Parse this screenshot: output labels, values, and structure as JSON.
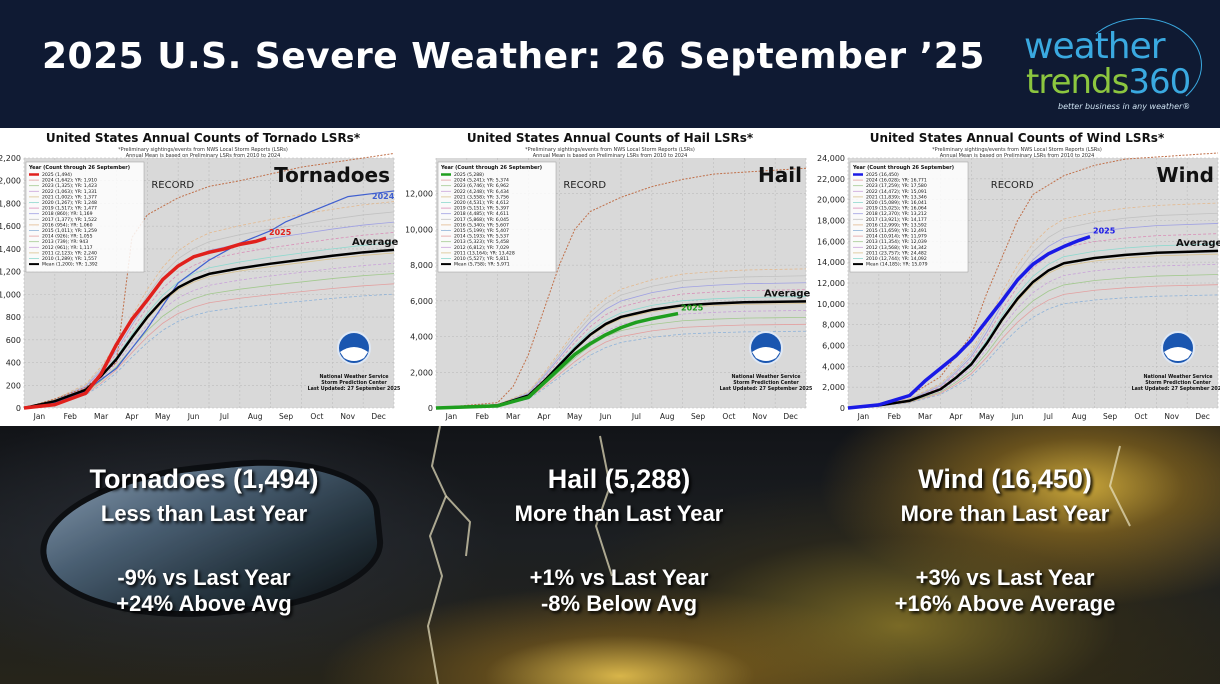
{
  "header": {
    "title": "2025 U.S. Severe Weather: 26 September ’25",
    "logo_line1": "weather",
    "logo_line2a": "trends",
    "logo_line2b": "360",
    "logo_tagline": "better business in any weather®"
  },
  "months": [
    "Jan",
    "Feb",
    "Mar",
    "Apr",
    "May",
    "Jun",
    "Jul",
    "Aug",
    "Sep",
    "Oct",
    "Nov",
    "Dec"
  ],
  "chart_data": [
    {
      "type": "line",
      "title": "United States Annual Counts of Tornado LSRs*",
      "subtitle1": "*Preliminary sightings/events from NWS Local Storm Reports (LSRs)",
      "subtitle2": "Annual Mean is based on Preliminary LSRs from 2010 to 2024",
      "overlay": "Tornadoes",
      "record_label": "RECORD",
      "average_label": "Average",
      "label_2025": "2025",
      "label_2024": "2024",
      "ylim": [
        0,
        2200
      ],
      "yticks": [
        "0",
        "200",
        "400",
        "600",
        "800",
        "1,000",
        "1,200",
        "1,400",
        "1,600",
        "1,800",
        "2,000",
        "2,200"
      ],
      "legend_title": "Year (Count through 26 September)",
      "legend": [
        "2025 (1,494)",
        "2024 (1,642); YR: 1,910",
        "2023 (1,325); YR: 1,423",
        "2022 (1,063); YR: 1,331",
        "2021 (1,002); YR: 1,377",
        "2020 (1,267); YR: 1,248",
        "2019 (1,517); YR: 1,477",
        "2018 (860); YR: 1,169",
        "2017 (1,377); YR: 1,522",
        "2016 (954); YR: 1,060",
        "2015 (1,011); YR: 1,259",
        "2014 (926); YR: 1,055",
        "2013 (739); YR: 943",
        "2012 (961); YR: 1,117",
        "2011 (2,123); YR: 2,240",
        "2010 (1,289); YR: 1,557",
        "Mean (1,200); YR: 1,392"
      ],
      "footer": [
        "National Weather Service",
        "Storm Prediction Center",
        "Last Updated: 27 September 2025"
      ],
      "series_2025": [
        [
          0,
          0
        ],
        [
          1,
          30
        ],
        [
          2,
          130
        ],
        [
          2.5,
          300
        ],
        [
          3,
          560
        ],
        [
          3.5,
          780
        ],
        [
          4,
          950
        ],
        [
          4.5,
          1130
        ],
        [
          5,
          1250
        ],
        [
          5.5,
          1330
        ],
        [
          6,
          1370
        ],
        [
          6.5,
          1400
        ],
        [
          7,
          1440
        ],
        [
          7.5,
          1465
        ],
        [
          7.85,
          1494
        ]
      ],
      "series_mean": [
        [
          0,
          0
        ],
        [
          1,
          60
        ],
        [
          2,
          160
        ],
        [
          2.5,
          280
        ],
        [
          3,
          430
        ],
        [
          3.5,
          620
        ],
        [
          4,
          800
        ],
        [
          4.5,
          950
        ],
        [
          5,
          1060
        ],
        [
          5.5,
          1130
        ],
        [
          6,
          1180
        ],
        [
          7,
          1230
        ],
        [
          8,
          1270
        ],
        [
          9,
          1305
        ],
        [
          10,
          1340
        ],
        [
          11,
          1370
        ],
        [
          12,
          1392
        ]
      ],
      "series_record": [
        [
          0,
          0
        ],
        [
          1,
          80
        ],
        [
          2,
          180
        ],
        [
          3,
          400
        ],
        [
          3.5,
          1500
        ],
        [
          4,
          1700
        ],
        [
          5,
          1850
        ],
        [
          6,
          1950
        ],
        [
          7,
          2000
        ],
        [
          8,
          2060
        ],
        [
          9,
          2120
        ],
        [
          10,
          2160
        ],
        [
          11,
          2200
        ],
        [
          12,
          2240
        ]
      ],
      "series_2024": [
        [
          0,
          0
        ],
        [
          1,
          50
        ],
        [
          2,
          150
        ],
        [
          3,
          350
        ],
        [
          4,
          700
        ],
        [
          5,
          1100
        ],
        [
          6,
          1300
        ],
        [
          7,
          1450
        ],
        [
          8,
          1560
        ],
        [
          8.5,
          1640
        ],
        [
          9.5,
          1750
        ],
        [
          10.5,
          1860
        ],
        [
          12,
          1910
        ]
      ]
    },
    {
      "type": "line",
      "title": "United States Annual Counts of Hail LSRs*",
      "subtitle1": "*Preliminary sightings/events from NWS Local Storm Reports (LSRs)",
      "subtitle2": "Annual Mean is based on Preliminary LSRs from 2010 to 2024",
      "overlay": "Hail",
      "record_label": "RECORD",
      "average_label": "Average",
      "label_2025": "2025",
      "ylim": [
        0,
        14000
      ],
      "yticks": [
        "0",
        "2,000",
        "4,000",
        "6,000",
        "8,000",
        "10,000",
        "12,000"
      ],
      "legend_title": "Year (Count through 26 September)",
      "legend": [
        "2025 (5,288)",
        "2024 (5,241); YR: 5,374",
        "2023 (6,746); YR: 6,962",
        "2022 (4,248); YR: 6,434",
        "2021 (3,558); YR: 3,756",
        "2020 (4,531); YR: 4,612",
        "2019 (5,151); YR: 5,397",
        "2018 (4,485); YR: 4,611",
        "2017 (5,868); YR: 6,045",
        "2016 (5,340); YR: 5,607",
        "2015 (5,199); YR: 5,407",
        "2014 (5,193); YR: 5,537",
        "2013 (5,323); YR: 5,458",
        "2012 (6,812); YR: 7,029",
        "2011 (13,164); YR: 13,428",
        "2010 (5,527); YR: 5,811",
        "Mean (5,758); YR: 5,971"
      ],
      "footer": [
        "National Weather Service",
        "Storm Prediction Center",
        "Last Updated: 27 September 2025"
      ],
      "series_2025": [
        [
          0,
          0
        ],
        [
          2,
          120
        ],
        [
          3,
          600
        ],
        [
          3.5,
          1400
        ],
        [
          4,
          2200
        ],
        [
          4.5,
          3000
        ],
        [
          5,
          3600
        ],
        [
          5.5,
          4100
        ],
        [
          6,
          4500
        ],
        [
          6.5,
          4800
        ],
        [
          7,
          5000
        ],
        [
          7.85,
          5288
        ]
      ],
      "series_mean": [
        [
          0,
          0
        ],
        [
          2,
          150
        ],
        [
          3,
          700
        ],
        [
          3.5,
          1500
        ],
        [
          4,
          2400
        ],
        [
          4.5,
          3300
        ],
        [
          5,
          4100
        ],
        [
          5.5,
          4700
        ],
        [
          6,
          5100
        ],
        [
          7,
          5500
        ],
        [
          8,
          5750
        ],
        [
          9,
          5850
        ],
        [
          10,
          5920
        ],
        [
          12,
          5971
        ]
      ],
      "series_record": [
        [
          0,
          0
        ],
        [
          2,
          300
        ],
        [
          2.5,
          1200
        ],
        [
          3,
          3000
        ],
        [
          3.5,
          5500
        ],
        [
          4,
          8000
        ],
        [
          4.5,
          10000
        ],
        [
          5,
          11000
        ],
        [
          6,
          11800
        ],
        [
          7,
          12400
        ],
        [
          8,
          12800
        ],
        [
          9,
          13100
        ],
        [
          12,
          13428
        ]
      ]
    },
    {
      "type": "line",
      "title": "United States Annual Counts of Wind LSRs*",
      "subtitle1": "*Preliminary sightings/events from NWS Local Storm Reports (LSRs)",
      "subtitle2": "Annual Mean is based on Preliminary LSRs from 2010 to 2024",
      "overlay": "Wind",
      "record_label": "RECORD",
      "average_label": "Average",
      "label_2025": "2025",
      "ylim": [
        0,
        24000
      ],
      "yticks": [
        "0",
        "2,000",
        "4,000",
        "6,000",
        "8,000",
        "10,000",
        "12,000",
        "14,000",
        "16,000",
        "18,000",
        "20,000",
        "22,000",
        "24,000"
      ],
      "legend_title": "Year (Count through 26 September)",
      "legend": [
        "2025 (16,450)",
        "2024 (16,028); YR: 16,771",
        "2023 (17,259); YR: 17,580",
        "2022 (14,472); YR: 15,091",
        "2021 (11,839); YR: 13,346",
        "2020 (15,089); YR: 16,041",
        "2019 (15,025); YR: 16,064",
        "2018 (12,370); YR: 13,212",
        "2017 (13,921); YR: 14,177",
        "2016 (12,999); YR: 13,592",
        "2015 (11,659); YR: 12,491",
        "2014 (10,914); YR: 11,979",
        "2013 (11,354); YR: 12,039",
        "2012 (13,568); YR: 14,342",
        "2011 (23,757); YR: 24,482",
        "2010 (12,744); YR: 14,092",
        "Mean (14,185); YR: 15,079"
      ],
      "footer": [
        "National Weather Service",
        "Storm Prediction Center",
        "Last Updated: 27 September 2025"
      ],
      "series_2025": [
        [
          0,
          0
        ],
        [
          1,
          300
        ],
        [
          2,
          1200
        ],
        [
          2.5,
          2600
        ],
        [
          3,
          3800
        ],
        [
          3.5,
          5000
        ],
        [
          4,
          6500
        ],
        [
          4.5,
          8400
        ],
        [
          5,
          10300
        ],
        [
          5.5,
          12300
        ],
        [
          6,
          13800
        ],
        [
          6.5,
          14800
        ],
        [
          7,
          15500
        ],
        [
          7.5,
          16100
        ],
        [
          7.85,
          16450
        ]
      ],
      "series_mean": [
        [
          0,
          0
        ],
        [
          1,
          250
        ],
        [
          2,
          700
        ],
        [
          3,
          1800
        ],
        [
          3.5,
          2900
        ],
        [
          4,
          4200
        ],
        [
          4.5,
          6200
        ],
        [
          5,
          8500
        ],
        [
          5.5,
          10500
        ],
        [
          6,
          12100
        ],
        [
          6.5,
          13200
        ],
        [
          7,
          13900
        ],
        [
          8,
          14400
        ],
        [
          9,
          14700
        ],
        [
          10,
          14900
        ],
        [
          12,
          15079
        ]
      ],
      "series_record": [
        [
          0,
          0
        ],
        [
          1,
          400
        ],
        [
          2,
          1200
        ],
        [
          3,
          3000
        ],
        [
          4,
          7000
        ],
        [
          4.5,
          11000
        ],
        [
          5,
          14500
        ],
        [
          5.5,
          18000
        ],
        [
          6,
          20500
        ],
        [
          7,
          22300
        ],
        [
          8,
          23300
        ],
        [
          9,
          23900
        ],
        [
          12,
          24482
        ]
      ]
    }
  ],
  "stats": [
    {
      "heading": "Tornadoes (1,494)",
      "sub": "Less than Last Year",
      "line1": "-9% vs Last Year",
      "line2": "+24% Above Avg"
    },
    {
      "heading": "Hail (5,288)",
      "sub": "More than Last Year",
      "line1": "+1% vs Last Year",
      "line2": "-8% Below Avg"
    },
    {
      "heading": "Wind (16,450)",
      "sub": "More than Last Year",
      "line1": "+3% vs Last Year",
      "line2": "+16% Above Average"
    }
  ],
  "colors": {
    "tornado_2025": "#e0201c",
    "hail_2025": "#1e9e1e",
    "wind_2025": "#1a1ae6",
    "mean": "#000000",
    "record": "#c0704a",
    "year_2024": "#3f5fd0",
    "plot_bg": "#d9d9d9"
  }
}
